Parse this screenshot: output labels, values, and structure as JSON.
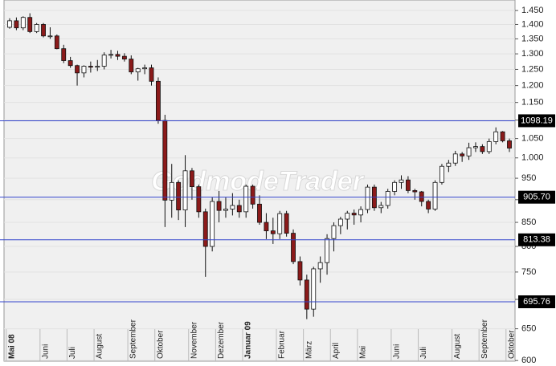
{
  "chart_data": {
    "type": "candlestick",
    "watermark": "GodmodeTrader",
    "scale": "log",
    "grid": true,
    "up_color": "#ffffff",
    "down_color": "#8b1a1a",
    "level_color": "#3344cc",
    "ylim": [
      599,
      1489
    ],
    "yticks": [
      600,
      650,
      700,
      750,
      800,
      850,
      900,
      950,
      {
        "value": 1000,
        "label": "1.000"
      },
      {
        "value": 1050,
        "label": "1.050"
      },
      {
        "value": 1100,
        "label": "1.100"
      },
      {
        "value": 1150,
        "label": "1.150"
      },
      {
        "value": 1200,
        "label": "1.200"
      },
      {
        "value": 1250,
        "label": "1.250"
      },
      {
        "value": 1300,
        "label": "1.300"
      },
      {
        "value": 1350,
        "label": "1.350"
      },
      {
        "value": 1400,
        "label": "1.400"
      },
      {
        "value": 1450,
        "label": "1.450"
      }
    ],
    "levels": [
      1098.19,
      {
        "value": 905.7,
        "label": "905.70"
      },
      813.38,
      695.76
    ],
    "categories": [
      "Mai 08",
      null,
      null,
      null,
      null,
      "Juni",
      null,
      null,
      null,
      "Juli",
      null,
      null,
      null,
      "August",
      null,
      null,
      null,
      null,
      "September",
      null,
      null,
      null,
      "Oktober",
      null,
      null,
      null,
      null,
      "November",
      null,
      null,
      null,
      "Dezember",
      null,
      null,
      null,
      "Januar 09",
      null,
      null,
      null,
      null,
      "Februar",
      null,
      null,
      null,
      "März",
      null,
      null,
      null,
      "April",
      null,
      null,
      null,
      "Mai",
      null,
      null,
      null,
      null,
      "Juni",
      null,
      null,
      null,
      "Juli",
      null,
      null,
      null,
      null,
      "August",
      null,
      null,
      null,
      "September",
      null,
      null,
      null,
      "Oktober"
    ],
    "open": [
      1390,
      1413,
      1388,
      1425,
      1375,
      1400,
      1360,
      1360,
      1317,
      1278,
      1262,
      1239,
      1260,
      1257,
      1260,
      1296,
      1298,
      1292,
      1283,
      1242,
      1252,
      1255,
      1213,
      1099,
      899,
      940,
      877,
      968,
      930,
      873,
      800,
      896,
      876,
      879,
      887,
      873,
      931,
      890,
      850,
      832,
      826,
      869,
      827,
      770,
      735,
      683,
      756,
      768,
      816,
      843,
      857,
      870,
      866,
      878,
      929,
      882,
      887,
      919,
      940,
      946,
      921,
      918,
      896,
      879,
      940,
      979,
      987,
      1010,
      1005,
      1026,
      1029,
      1016,
      1042,
      1068,
      1044
    ],
    "high": [
      1422,
      1425,
      1429,
      1440,
      1405,
      1405,
      1390,
      1365,
      1330,
      1290,
      1265,
      1263,
      1275,
      1280,
      1305,
      1313,
      1310,
      1302,
      1295,
      1255,
      1265,
      1265,
      1225,
      1115,
      985,
      945,
      1007,
      975,
      935,
      880,
      905,
      920,
      905,
      915,
      900,
      935,
      935,
      910,
      870,
      860,
      875,
      875,
      835,
      780,
      745,
      760,
      780,
      825,
      850,
      862,
      875,
      878,
      885,
      935,
      935,
      895,
      925,
      945,
      957,
      955,
      925,
      920,
      900,
      945,
      985,
      995,
      1018,
      1015,
      1039,
      1040,
      1035,
      1050,
      1080,
      1070,
      1050
    ],
    "low": [
      1385,
      1380,
      1380,
      1370,
      1370,
      1355,
      1350,
      1315,
      1270,
      1255,
      1200,
      1225,
      1240,
      1245,
      1250,
      1285,
      1280,
      1275,
      1235,
      1215,
      1235,
      1200,
      1090,
      840,
      860,
      855,
      840,
      900,
      860,
      741,
      790,
      850,
      860,
      865,
      860,
      860,
      880,
      845,
      815,
      805,
      815,
      820,
      765,
      725,
      666,
      670,
      730,
      745,
      790,
      825,
      835,
      845,
      850,
      870,
      875,
      870,
      880,
      910,
      925,
      915,
      900,
      885,
      870,
      875,
      935,
      965,
      980,
      990,
      995,
      1015,
      1010,
      1010,
      1035,
      1040,
      1015
    ],
    "close": [
      1413,
      1388,
      1425,
      1375,
      1400,
      1360,
      1360,
      1317,
      1278,
      1262,
      1239,
      1260,
      1257,
      1260,
      1296,
      1298,
      1292,
      1283,
      1242,
      1252,
      1255,
      1213,
      1099,
      899,
      940,
      877,
      968,
      930,
      873,
      800,
      896,
      876,
      879,
      887,
      873,
      931,
      890,
      850,
      832,
      826,
      869,
      827,
      770,
      735,
      683,
      756,
      768,
      816,
      843,
      857,
      870,
      866,
      878,
      929,
      882,
      887,
      919,
      940,
      946,
      921,
      918,
      896,
      879,
      940,
      979,
      987,
      1010,
      1005,
      1026,
      1029,
      1016,
      1042,
      1068,
      1044,
      1025
    ]
  }
}
